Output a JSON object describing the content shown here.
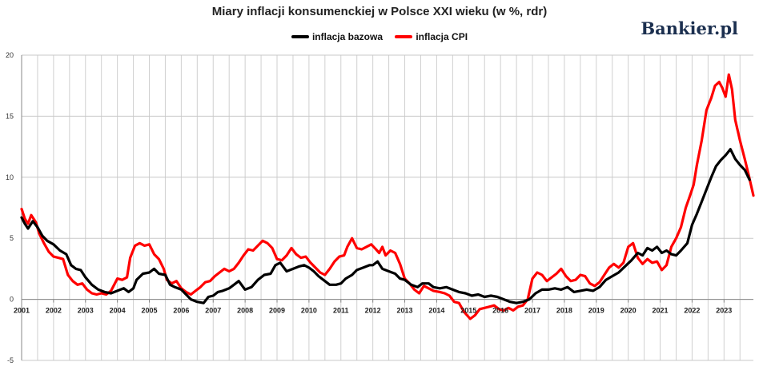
{
  "header": {
    "title": "Miary inflacji konsumenckiej w Polsce XXI wieku (w %, rdr)",
    "brand": "Bankier.pl"
  },
  "chart_data": {
    "type": "line",
    "title": "Miary inflacji konsumenckiej w Polsce XXI wieku (w %, rdr)",
    "xlabel": "",
    "ylabel": "",
    "ylim": [
      -5,
      20
    ],
    "xlim": [
      2001.0,
      2023.92
    ],
    "yticks": [
      -5,
      0,
      5,
      10,
      15,
      20
    ],
    "xticks": [
      "2001",
      "2002",
      "2003",
      "2004",
      "2005",
      "2006",
      "2007",
      "2008",
      "2009",
      "2010",
      "2011",
      "2012",
      "2013",
      "2014",
      "2015",
      "2016",
      "2017",
      "2018",
      "2019",
      "2020",
      "2021",
      "2022",
      "2023"
    ],
    "grid": true,
    "legend_position": "top-center",
    "series": [
      {
        "name": "inflacja bazowa",
        "color": "#000000",
        "points": [
          [
            2001.0,
            6.7
          ],
          [
            2001.1,
            6.2
          ],
          [
            2001.2,
            5.8
          ],
          [
            2001.35,
            6.4
          ],
          [
            2001.5,
            5.9
          ],
          [
            2001.65,
            5.2
          ],
          [
            2001.8,
            4.8
          ],
          [
            2002.0,
            4.5
          ],
          [
            2002.2,
            4.0
          ],
          [
            2002.4,
            3.7
          ],
          [
            2002.55,
            2.8
          ],
          [
            2002.7,
            2.5
          ],
          [
            2002.85,
            2.4
          ],
          [
            2003.0,
            1.8
          ],
          [
            2003.2,
            1.2
          ],
          [
            2003.4,
            0.8
          ],
          [
            2003.6,
            0.6
          ],
          [
            2003.8,
            0.5
          ],
          [
            2004.0,
            0.7
          ],
          [
            2004.2,
            0.9
          ],
          [
            2004.35,
            0.6
          ],
          [
            2004.5,
            0.9
          ],
          [
            2004.6,
            1.6
          ],
          [
            2004.8,
            2.1
          ],
          [
            2005.0,
            2.2
          ],
          [
            2005.15,
            2.5
          ],
          [
            2005.3,
            2.1
          ],
          [
            2005.5,
            2.0
          ],
          [
            2005.65,
            1.2
          ],
          [
            2005.8,
            1.0
          ],
          [
            2006.0,
            0.8
          ],
          [
            2006.15,
            0.4
          ],
          [
            2006.3,
            0.0
          ],
          [
            2006.5,
            -0.2
          ],
          [
            2006.7,
            -0.3
          ],
          [
            2006.85,
            0.2
          ],
          [
            2007.0,
            0.3
          ],
          [
            2007.15,
            0.6
          ],
          [
            2007.3,
            0.7
          ],
          [
            2007.5,
            0.9
          ],
          [
            2007.65,
            1.2
          ],
          [
            2007.8,
            1.5
          ],
          [
            2008.0,
            0.8
          ],
          [
            2008.2,
            1.0
          ],
          [
            2008.4,
            1.6
          ],
          [
            2008.6,
            2.0
          ],
          [
            2008.8,
            2.1
          ],
          [
            2008.95,
            2.8
          ],
          [
            2009.1,
            3.0
          ],
          [
            2009.3,
            2.3
          ],
          [
            2009.5,
            2.5
          ],
          [
            2009.7,
            2.7
          ],
          [
            2009.85,
            2.8
          ],
          [
            2010.0,
            2.6
          ],
          [
            2010.15,
            2.3
          ],
          [
            2010.3,
            1.9
          ],
          [
            2010.5,
            1.5
          ],
          [
            2010.65,
            1.2
          ],
          [
            2010.85,
            1.2
          ],
          [
            2011.0,
            1.3
          ],
          [
            2011.15,
            1.7
          ],
          [
            2011.35,
            2.0
          ],
          [
            2011.5,
            2.4
          ],
          [
            2011.7,
            2.6
          ],
          [
            2011.9,
            2.8
          ],
          [
            2012.0,
            2.8
          ],
          [
            2012.15,
            3.1
          ],
          [
            2012.3,
            2.5
          ],
          [
            2012.5,
            2.3
          ],
          [
            2012.7,
            2.1
          ],
          [
            2012.85,
            1.7
          ],
          [
            2013.0,
            1.6
          ],
          [
            2013.2,
            1.2
          ],
          [
            2013.4,
            1.0
          ],
          [
            2013.55,
            1.3
          ],
          [
            2013.75,
            1.3
          ],
          [
            2013.9,
            1.0
          ],
          [
            2014.1,
            0.9
          ],
          [
            2014.3,
            1.0
          ],
          [
            2014.5,
            0.8
          ],
          [
            2014.7,
            0.6
          ],
          [
            2014.9,
            0.5
          ],
          [
            2015.1,
            0.3
          ],
          [
            2015.3,
            0.4
          ],
          [
            2015.5,
            0.2
          ],
          [
            2015.7,
            0.3
          ],
          [
            2015.9,
            0.2
          ],
          [
            2016.1,
            0.0
          ],
          [
            2016.3,
            -0.2
          ],
          [
            2016.5,
            -0.3
          ],
          [
            2016.7,
            -0.2
          ],
          [
            2016.9,
            0.0
          ],
          [
            2017.1,
            0.5
          ],
          [
            2017.3,
            0.8
          ],
          [
            2017.5,
            0.8
          ],
          [
            2017.7,
            0.9
          ],
          [
            2017.9,
            0.8
          ],
          [
            2018.1,
            1.0
          ],
          [
            2018.3,
            0.6
          ],
          [
            2018.5,
            0.7
          ],
          [
            2018.7,
            0.8
          ],
          [
            2018.9,
            0.7
          ],
          [
            2019.1,
            1.0
          ],
          [
            2019.3,
            1.6
          ],
          [
            2019.5,
            1.9
          ],
          [
            2019.7,
            2.2
          ],
          [
            2019.9,
            2.7
          ],
          [
            2020.1,
            3.2
          ],
          [
            2020.3,
            3.8
          ],
          [
            2020.45,
            3.6
          ],
          [
            2020.6,
            4.2
          ],
          [
            2020.75,
            4.0
          ],
          [
            2020.9,
            4.3
          ],
          [
            2021.05,
            3.8
          ],
          [
            2021.2,
            4.0
          ],
          [
            2021.35,
            3.7
          ],
          [
            2021.5,
            3.6
          ],
          [
            2021.65,
            4.0
          ],
          [
            2021.85,
            4.6
          ],
          [
            2022.0,
            6.1
          ],
          [
            2022.15,
            7.0
          ],
          [
            2022.3,
            8.0
          ],
          [
            2022.45,
            9.0
          ],
          [
            2022.6,
            10.0
          ],
          [
            2022.75,
            10.9
          ],
          [
            2022.9,
            11.4
          ],
          [
            2023.05,
            11.8
          ],
          [
            2023.2,
            12.3
          ],
          [
            2023.35,
            11.5
          ],
          [
            2023.5,
            11.0
          ],
          [
            2023.65,
            10.6
          ],
          [
            2023.8,
            9.8
          ]
        ]
      },
      {
        "name": "inflacja CPI",
        "color": "#ff0000",
        "points": [
          [
            2001.0,
            7.4
          ],
          [
            2001.1,
            6.6
          ],
          [
            2001.2,
            6.2
          ],
          [
            2001.3,
            6.9
          ],
          [
            2001.45,
            6.3
          ],
          [
            2001.55,
            5.4
          ],
          [
            2001.7,
            4.6
          ],
          [
            2001.85,
            3.9
          ],
          [
            2002.0,
            3.5
          ],
          [
            2002.15,
            3.4
          ],
          [
            2002.3,
            3.3
          ],
          [
            2002.45,
            2.0
          ],
          [
            2002.6,
            1.5
          ],
          [
            2002.75,
            1.2
          ],
          [
            2002.9,
            1.3
          ],
          [
            2003.05,
            0.8
          ],
          [
            2003.2,
            0.5
          ],
          [
            2003.35,
            0.4
          ],
          [
            2003.5,
            0.5
          ],
          [
            2003.65,
            0.4
          ],
          [
            2003.8,
            0.7
          ],
          [
            2004.0,
            1.7
          ],
          [
            2004.15,
            1.6
          ],
          [
            2004.3,
            1.8
          ],
          [
            2004.4,
            3.4
          ],
          [
            2004.55,
            4.4
          ],
          [
            2004.7,
            4.6
          ],
          [
            2004.85,
            4.4
          ],
          [
            2005.0,
            4.5
          ],
          [
            2005.15,
            3.7
          ],
          [
            2005.3,
            3.3
          ],
          [
            2005.45,
            2.5
          ],
          [
            2005.55,
            1.6
          ],
          [
            2005.7,
            1.3
          ],
          [
            2005.85,
            1.5
          ],
          [
            2006.0,
            0.9
          ],
          [
            2006.15,
            0.6
          ],
          [
            2006.3,
            0.4
          ],
          [
            2006.45,
            0.7
          ],
          [
            2006.6,
            1.0
          ],
          [
            2006.75,
            1.4
          ],
          [
            2006.9,
            1.5
          ],
          [
            2007.05,
            1.9
          ],
          [
            2007.2,
            2.2
          ],
          [
            2007.35,
            2.5
          ],
          [
            2007.5,
            2.3
          ],
          [
            2007.65,
            2.5
          ],
          [
            2007.8,
            3.0
          ],
          [
            2007.95,
            3.6
          ],
          [
            2008.1,
            4.1
          ],
          [
            2008.25,
            4.0
          ],
          [
            2008.4,
            4.4
          ],
          [
            2008.55,
            4.8
          ],
          [
            2008.7,
            4.6
          ],
          [
            2008.85,
            4.2
          ],
          [
            2009.0,
            3.3
          ],
          [
            2009.15,
            3.2
          ],
          [
            2009.3,
            3.6
          ],
          [
            2009.45,
            4.2
          ],
          [
            2009.6,
            3.7
          ],
          [
            2009.75,
            3.4
          ],
          [
            2009.9,
            3.5
          ],
          [
            2010.05,
            3.0
          ],
          [
            2010.2,
            2.6
          ],
          [
            2010.35,
            2.2
          ],
          [
            2010.5,
            2.0
          ],
          [
            2010.65,
            2.5
          ],
          [
            2010.8,
            3.1
          ],
          [
            2010.95,
            3.5
          ],
          [
            2011.1,
            3.6
          ],
          [
            2011.2,
            4.3
          ],
          [
            2011.35,
            5.0
          ],
          [
            2011.5,
            4.2
          ],
          [
            2011.65,
            4.1
          ],
          [
            2011.8,
            4.3
          ],
          [
            2011.95,
            4.5
          ],
          [
            2012.1,
            4.1
          ],
          [
            2012.2,
            3.8
          ],
          [
            2012.3,
            4.3
          ],
          [
            2012.4,
            3.6
          ],
          [
            2012.55,
            4.0
          ],
          [
            2012.7,
            3.8
          ],
          [
            2012.85,
            2.9
          ],
          [
            2013.0,
            1.7
          ],
          [
            2013.15,
            1.3
          ],
          [
            2013.3,
            0.8
          ],
          [
            2013.45,
            0.5
          ],
          [
            2013.6,
            1.1
          ],
          [
            2013.75,
            0.9
          ],
          [
            2013.9,
            0.7
          ],
          [
            2014.1,
            0.6
          ],
          [
            2014.25,
            0.5
          ],
          [
            2014.4,
            0.3
          ],
          [
            2014.55,
            -0.2
          ],
          [
            2014.7,
            -0.3
          ],
          [
            2014.85,
            -1.0
          ],
          [
            2015.05,
            -1.6
          ],
          [
            2015.2,
            -1.3
          ],
          [
            2015.35,
            -0.8
          ],
          [
            2015.5,
            -0.7
          ],
          [
            2015.65,
            -0.6
          ],
          [
            2015.8,
            -0.5
          ],
          [
            2015.95,
            -0.8
          ],
          [
            2016.1,
            -0.9
          ],
          [
            2016.25,
            -0.7
          ],
          [
            2016.4,
            -0.9
          ],
          [
            2016.55,
            -0.6
          ],
          [
            2016.7,
            -0.5
          ],
          [
            2016.85,
            0.0
          ],
          [
            2017.0,
            1.7
          ],
          [
            2017.15,
            2.2
          ],
          [
            2017.3,
            2.0
          ],
          [
            2017.45,
            1.5
          ],
          [
            2017.6,
            1.8
          ],
          [
            2017.75,
            2.1
          ],
          [
            2017.9,
            2.5
          ],
          [
            2018.05,
            1.9
          ],
          [
            2018.2,
            1.5
          ],
          [
            2018.35,
            1.6
          ],
          [
            2018.5,
            2.0
          ],
          [
            2018.65,
            1.9
          ],
          [
            2018.8,
            1.3
          ],
          [
            2018.95,
            1.1
          ],
          [
            2019.1,
            1.4
          ],
          [
            2019.25,
            2.0
          ],
          [
            2019.4,
            2.6
          ],
          [
            2019.55,
            2.9
          ],
          [
            2019.7,
            2.6
          ],
          [
            2019.85,
            3.0
          ],
          [
            2020.0,
            4.3
          ],
          [
            2020.15,
            4.6
          ],
          [
            2020.3,
            3.4
          ],
          [
            2020.45,
            2.9
          ],
          [
            2020.6,
            3.3
          ],
          [
            2020.75,
            3.0
          ],
          [
            2020.9,
            3.1
          ],
          [
            2021.05,
            2.4
          ],
          [
            2021.2,
            2.8
          ],
          [
            2021.35,
            4.3
          ],
          [
            2021.5,
            5.0
          ],
          [
            2021.65,
            5.9
          ],
          [
            2021.8,
            7.5
          ],
          [
            2021.95,
            8.6
          ],
          [
            2022.05,
            9.4
          ],
          [
            2022.15,
            11.0
          ],
          [
            2022.3,
            13.0
          ],
          [
            2022.45,
            15.5
          ],
          [
            2022.6,
            16.5
          ],
          [
            2022.72,
            17.5
          ],
          [
            2022.85,
            17.8
          ],
          [
            2022.95,
            17.3
          ],
          [
            2023.05,
            16.6
          ],
          [
            2023.15,
            18.4
          ],
          [
            2023.25,
            17.2
          ],
          [
            2023.35,
            14.7
          ],
          [
            2023.5,
            13.0
          ],
          [
            2023.65,
            11.5
          ],
          [
            2023.78,
            10.1
          ],
          [
            2023.92,
            8.5
          ]
        ]
      }
    ]
  }
}
